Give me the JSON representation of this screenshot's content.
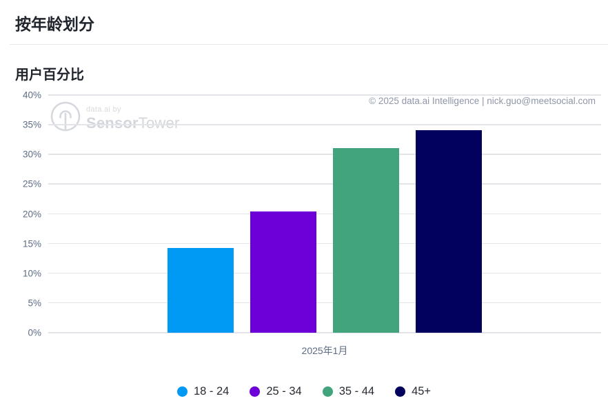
{
  "page": {
    "title": "按年龄划分"
  },
  "watermark": {
    "prefix": "data.ai by",
    "brand_bold": "Sensor",
    "brand_light": "Tower"
  },
  "copyright": "© 2025 data.ai Intelligence | nick.guo@meetsocial.com",
  "chart_data": {
    "type": "bar",
    "title": "用户百分比",
    "categories": [
      "18 - 24",
      "25 - 34",
      "35 - 44",
      "45+"
    ],
    "values": [
      14.3,
      20.4,
      31.1,
      34.1
    ],
    "colors": [
      "#009AF5",
      "#6D00D9",
      "#41A47D",
      "#02025E"
    ],
    "xlabel": "2025年1月",
    "ylabel": "",
    "ylim": [
      0,
      40
    ],
    "y_tick_values": [
      40,
      35,
      30,
      25,
      20,
      15,
      10,
      5,
      0
    ],
    "y_tick_labels": [
      "40%",
      "35%",
      "30%",
      "25%",
      "20%",
      "15%",
      "10%",
      "5%",
      "0%"
    ],
    "grid": true,
    "legend_position": "bottom"
  }
}
